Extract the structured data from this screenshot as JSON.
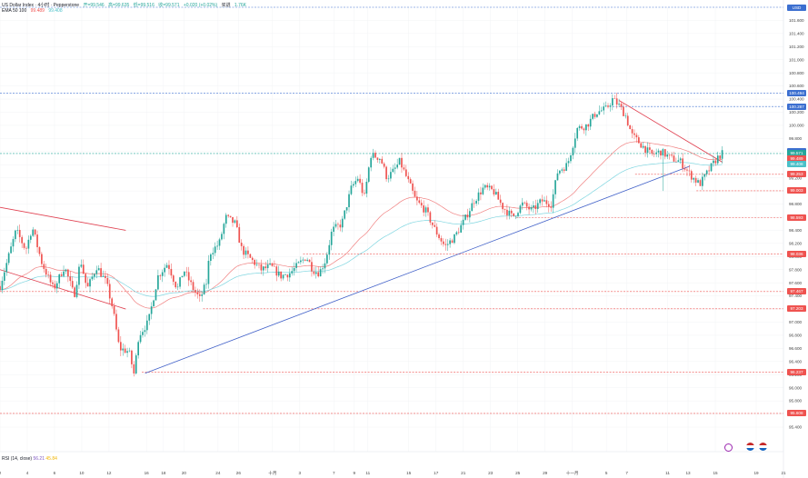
{
  "header": {
    "symbol": "US Dollar Index · 4小时 · Pepperstone",
    "open": "开=99.546",
    "high": "高=99.635",
    "low": "低=99.516",
    "close": "收=99.571",
    "change": "+0.020 (+0.02%)",
    "buy": "买进",
    "vol": "1.76K",
    "ema_label": "EMA 50 100",
    "ema50": "99.489",
    "ema100": "99.408"
  },
  "rsi": {
    "label": "RSI (14, close)",
    "value1": "56.21",
    "value2": "45.84"
  },
  "colors": {
    "up": "#26a69a",
    "down": "#ef5350",
    "ema50": "#f08080",
    "ema100": "#7fd6e0",
    "trend_blue": "#4060c8",
    "trend_red": "#e04050",
    "level_red": "#e05060",
    "level_blue": "#3c6fd0"
  },
  "chart_data": {
    "type": "candlestick",
    "title": "US Dollar Index · 4小时 · Pepperstone",
    "ylim": [
      95.4,
      101.8
    ],
    "y_ticks": [
      "101.600",
      "101.400",
      "101.200",
      "101.000",
      "100.800",
      "100.600",
      "100.400",
      "100.200",
      "100.000",
      "99.800",
      "99.600",
      "99.400",
      "99.200",
      "99.000",
      "98.800",
      "98.600",
      "98.400",
      "98.200",
      "98.000",
      "97.800",
      "97.600",
      "97.400",
      "97.200",
      "97.000",
      "96.800",
      "96.600",
      "96.400",
      "96.200",
      "96.000",
      "95.800",
      "95.600",
      "95.400"
    ],
    "x_ticks": [
      "2",
      "4",
      "6",
      "10",
      "12",
      "16",
      "18",
      "20",
      "24",
      "26",
      "十月",
      "3",
      "7",
      "9",
      "11",
      "15",
      "17",
      "21",
      "23",
      "25",
      "29",
      "十一月",
      "5",
      "7",
      "11",
      "13",
      "15",
      "19",
      "21"
    ],
    "price_tags": [
      {
        "label": "USD",
        "value": 101.8,
        "color": "#3c6fd0"
      },
      {
        "label": "100.494",
        "value": 100.494,
        "color": "#3c6fd0"
      },
      {
        "label": "100.287",
        "value": 100.287,
        "color": "#3c6fd0"
      },
      {
        "label": "99.599",
        "value": 99.599,
        "color": "#3c6fd0"
      },
      {
        "label": "99.571",
        "value": 99.571,
        "color": "#26a69a"
      },
      {
        "label": "99.489",
        "value": 99.489,
        "color": "#ef5350"
      },
      {
        "label": "99.408",
        "value": 99.408,
        "color": "#4ac0c8"
      },
      {
        "label": "99.253",
        "value": 99.253,
        "color": "#ef5350"
      },
      {
        "label": "99.003",
        "value": 99.003,
        "color": "#ef5350"
      },
      {
        "label": "98.593",
        "value": 98.593,
        "color": "#ef5350"
      },
      {
        "label": "98.036",
        "value": 98.036,
        "color": "#ef5350"
      },
      {
        "label": "97.467",
        "value": 97.467,
        "color": "#ef5350"
      },
      {
        "label": "97.203",
        "value": 97.203,
        "color": "#ef5350"
      },
      {
        "label": "96.237",
        "value": 96.237,
        "color": "#ef5350"
      },
      {
        "label": "95.608",
        "value": 95.608,
        "color": "#ef5350"
      }
    ],
    "levels": [
      {
        "value": 101.8,
        "color": "#3c6fd0",
        "x_start_day": 0
      },
      {
        "value": 100.494,
        "color": "#3c6fd0",
        "x_start_day": 0
      },
      {
        "value": 100.287,
        "color": "#3c6fd0",
        "x_start_day": 95.0
      },
      {
        "value": 99.571,
        "color": "#26a69a",
        "x_start_day": 0
      },
      {
        "value": 99.253,
        "color": "#ef5350",
        "x_start_day": 98.5
      },
      {
        "value": 99.003,
        "color": "#ef5350",
        "x_start_day": 108.0
      },
      {
        "value": 98.593,
        "color": "#ef5350",
        "x_start_day": 80.0
      },
      {
        "value": 98.036,
        "color": "#ef5350",
        "x_start_day": 47.0
      },
      {
        "value": 97.467,
        "color": "#ef5350",
        "x_start_day": 0
      },
      {
        "value": 97.203,
        "color": "#ef5350",
        "x_start_day": 31.5
      },
      {
        "value": 96.237,
        "color": "#ef5350",
        "x_start_day": 22.0
      },
      {
        "value": 95.608,
        "color": "#ef5350",
        "x_start_day": 0
      }
    ],
    "trendlines": [
      {
        "name": "support",
        "color": "#4060c8",
        "from": [
          22.5,
          96.22
        ],
        "to": [
          107.0,
          99.38
        ]
      },
      {
        "name": "descending",
        "color": "#e04050",
        "from": [
          96.0,
          100.38
        ],
        "to": [
          112.0,
          99.44
        ]
      },
      {
        "name": "channel-upper",
        "color": "#e04050",
        "from": [
          0,
          98.75
        ],
        "to": [
          19.5,
          98.4
        ]
      },
      {
        "name": "channel-lower",
        "color": "#e04050",
        "from": [
          0,
          97.8
        ],
        "to": [
          19.5,
          97.2
        ]
      }
    ],
    "series": [
      {
        "name": "DXY 4H",
        "x_start_day": 0,
        "x_end_day": 112,
        "anchors": [
          [
            0,
            97.55
          ],
          [
            2.5,
            98.4
          ],
          [
            4,
            98.1
          ],
          [
            5,
            98.45
          ],
          [
            6.5,
            97.9
          ],
          [
            8.3,
            97.5
          ],
          [
            10,
            97.85
          ],
          [
            11.5,
            97.4
          ],
          [
            12.5,
            97.95
          ],
          [
            13.5,
            97.5
          ],
          [
            15,
            97.85
          ],
          [
            16.5,
            97.6
          ],
          [
            17.5,
            97.2
          ],
          [
            18.5,
            96.6
          ],
          [
            20,
            96.55
          ],
          [
            20.8,
            96.2
          ],
          [
            21.5,
            96.8
          ],
          [
            23,
            97.0
          ],
          [
            24.5,
            97.7
          ],
          [
            26,
            97.9
          ],
          [
            27.5,
            97.5
          ],
          [
            28.5,
            97.8
          ],
          [
            30,
            97.5
          ],
          [
            31,
            97.35
          ],
          [
            32,
            97.6
          ],
          [
            32.5,
            98.05
          ],
          [
            34,
            98.2
          ],
          [
            35,
            98.6
          ],
          [
            36.5,
            98.5
          ],
          [
            37.5,
            98.1
          ],
          [
            39,
            97.95
          ],
          [
            40.5,
            97.8
          ],
          [
            42,
            97.85
          ],
          [
            43.5,
            97.7
          ],
          [
            45,
            97.75
          ],
          [
            46.5,
            97.9
          ],
          [
            47.5,
            98.0
          ],
          [
            48.5,
            97.8
          ],
          [
            49.5,
            97.75
          ],
          [
            50.5,
            97.95
          ],
          [
            51.5,
            98.4
          ],
          [
            53,
            98.5
          ],
          [
            54.5,
            99.05
          ],
          [
            55.5,
            99.2
          ],
          [
            56.5,
            98.9
          ],
          [
            57.5,
            99.55
          ],
          [
            59,
            99.5
          ],
          [
            60,
            99.2
          ],
          [
            61,
            99.3
          ],
          [
            62,
            99.45
          ],
          [
            63.5,
            99.1
          ],
          [
            64.5,
            98.85
          ],
          [
            66,
            98.7
          ],
          [
            67.5,
            98.4
          ],
          [
            69,
            98.15
          ],
          [
            70.5,
            98.3
          ],
          [
            72,
            98.55
          ],
          [
            73.5,
            98.85
          ],
          [
            75,
            99.05
          ],
          [
            76.5,
            99.0
          ],
          [
            78,
            98.75
          ],
          [
            79.5,
            98.6
          ],
          [
            81,
            98.8
          ],
          [
            82.5,
            98.7
          ],
          [
            84,
            98.85
          ],
          [
            85.5,
            98.8
          ],
          [
            86.5,
            99.3
          ],
          [
            88,
            99.4
          ],
          [
            89.5,
            99.95
          ],
          [
            91,
            100.0
          ],
          [
            92.5,
            100.2
          ],
          [
            94,
            100.25
          ],
          [
            95,
            100.4
          ],
          [
            96,
            100.3
          ],
          [
            97,
            100.15
          ],
          [
            98,
            99.85
          ],
          [
            99.5,
            99.7
          ],
          [
            101,
            99.55
          ],
          [
            102.5,
            99.6
          ],
          [
            104,
            99.5
          ],
          [
            105.5,
            99.45
          ],
          [
            107,
            99.25
          ],
          [
            108.5,
            99.1
          ],
          [
            109.5,
            99.25
          ],
          [
            110.5,
            99.4
          ],
          [
            111.2,
            99.5
          ],
          [
            112,
            99.57
          ]
        ]
      }
    ],
    "ema": [
      {
        "name": "EMA 50",
        "value": 99.489
      },
      {
        "name": "EMA 100",
        "value": 99.408
      }
    ]
  }
}
